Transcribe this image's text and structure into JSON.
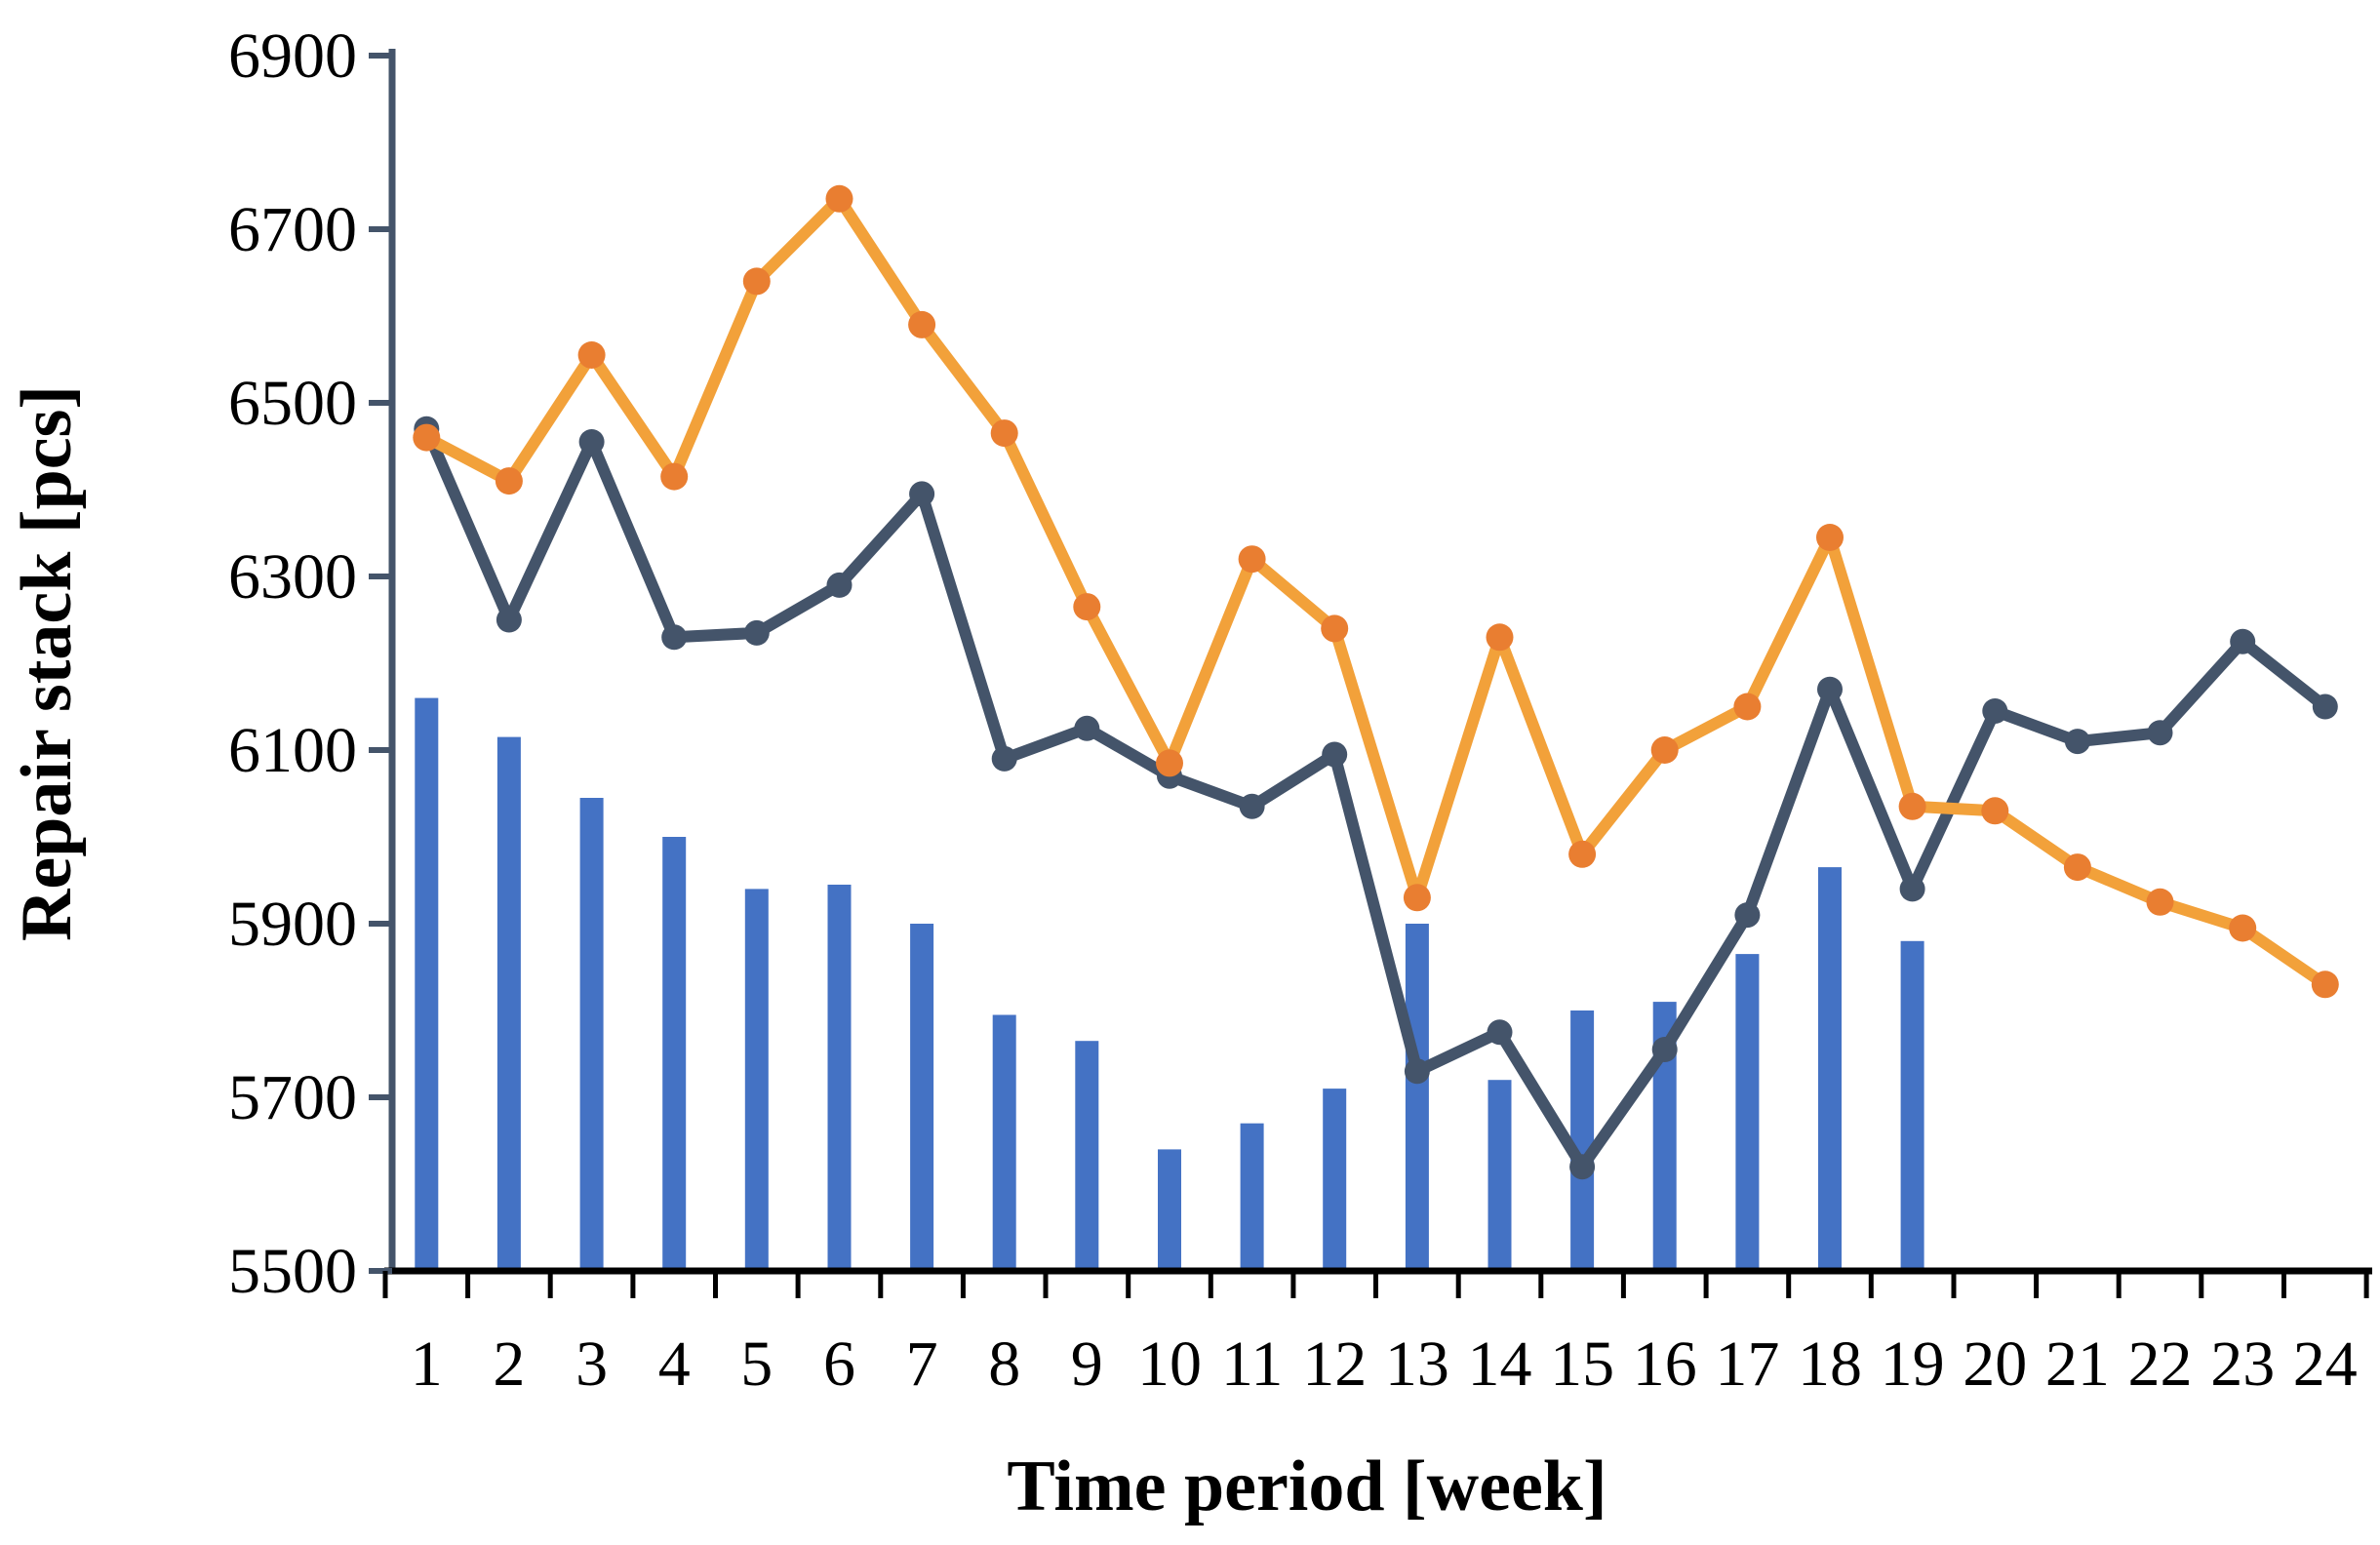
{
  "chart_data": {
    "type": "bar+line combo",
    "title": "",
    "xlabel": "Time period [week]",
    "ylabel": "Repair stack [pcs]",
    "ylim": [
      5500,
      6900
    ],
    "ytick_step": 200,
    "ytick_labels": [
      "5500",
      "5700",
      "5900",
      "6100",
      "6300",
      "6500",
      "6700",
      "6900"
    ],
    "grid": "off",
    "legend": "none",
    "categories": [
      1,
      2,
      3,
      4,
      5,
      6,
      7,
      8,
      9,
      10,
      11,
      12,
      13,
      14,
      15,
      16,
      17,
      18,
      19,
      20,
      21,
      22,
      23,
      24
    ],
    "series": [
      {
        "id": "repair_stack_bars",
        "type": "bar",
        "color": "#4472C4",
        "values": [
          6160,
          6115,
          6045,
          6000,
          5940,
          5945,
          5900,
          5795,
          5765,
          5640,
          5670,
          5710,
          5900,
          5720,
          5800,
          5810,
          5865,
          5965,
          5880,
          null,
          null,
          null,
          null,
          null
        ]
      },
      {
        "id": "dark_line",
        "type": "line",
        "color": "#44546A",
        "marker_color": "#44546A",
        "values": [
          6470,
          6250,
          6455,
          6230,
          6235,
          6290,
          6395,
          6090,
          6125,
          6070,
          6035,
          6095,
          5730,
          5775,
          5620,
          5755,
          5910,
          6170,
          5940,
          6145,
          6110,
          6120,
          6225,
          6150
        ]
      },
      {
        "id": "orange_line",
        "type": "line",
        "color": "#F2A13A",
        "marker_color": "#E97E31",
        "values": [
          6460,
          6410,
          6555,
          6415,
          6640,
          6735,
          6590,
          6465,
          6265,
          6085,
          6320,
          6240,
          5930,
          6230,
          5980,
          6100,
          6150,
          6345,
          6035,
          6030,
          5965,
          5925,
          5895,
          5830
        ]
      }
    ],
    "axis_colors": {
      "y_axis": "#44546A",
      "x_axis": "#000000"
    }
  }
}
